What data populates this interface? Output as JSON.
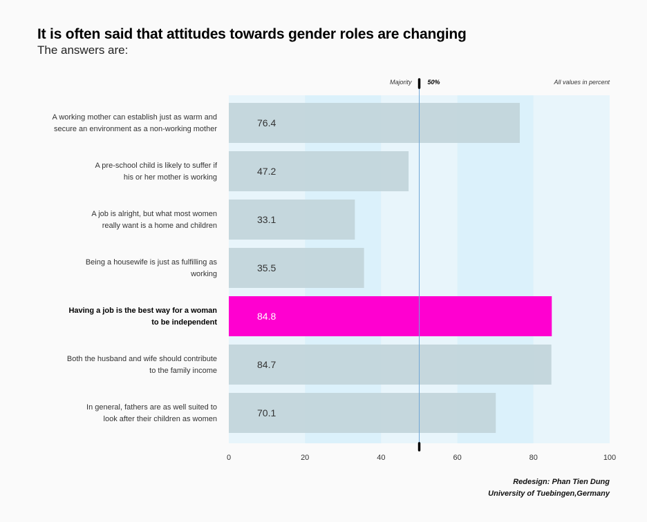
{
  "header": {
    "title": "It is often said that attitudes towards gender roles are changing",
    "subtitle": "The answers are:"
  },
  "annotations": {
    "majority": "Majority",
    "fifty": "50%",
    "units": "All values in percent"
  },
  "credit": {
    "line1": "Redesign: Phan Tien Dung",
    "line2": "University of Tuebingen,Germany"
  },
  "colors": {
    "background": "#fafafa",
    "band_light": "#e8f5fb",
    "band_dark": "#dbf1fb",
    "bar": "#c1d4d9",
    "highlight": "#ff00d0",
    "majority_line": "#6fa6d6",
    "marker": "#000000"
  },
  "chart_data": {
    "type": "bar",
    "orientation": "horizontal",
    "categories": [
      [
        "A working mother can establish just as warm and",
        "secure an environment as a non-working mother"
      ],
      [
        "A pre-school child is likely to suffer if",
        "his or her mother is working"
      ],
      [
        "A job is alright, but what most women",
        "really want is a home and children"
      ],
      [
        "Being a housewife is just as fulfilling as",
        "working"
      ],
      [
        "Having a job is the best way for a woman",
        "to be independent"
      ],
      [
        "Both the husband and wife should contribute",
        "to the family income"
      ],
      [
        "In general, fathers are as well suited to",
        "look after their children as women"
      ]
    ],
    "values": [
      76.4,
      47.2,
      33.1,
      35.5,
      84.8,
      84.7,
      70.1
    ],
    "value_labels": [
      "76.4",
      "47.2",
      "33.1",
      "35.5",
      "84.8",
      "84.7",
      "70.1"
    ],
    "highlight_index": 4,
    "xlim": [
      0,
      100
    ],
    "xticks": [
      0,
      20,
      40,
      60,
      80,
      100
    ],
    "xtick_labels": [
      "0",
      "20",
      "40",
      "60",
      "80",
      "100"
    ],
    "reference_line": 50,
    "grid": false
  }
}
